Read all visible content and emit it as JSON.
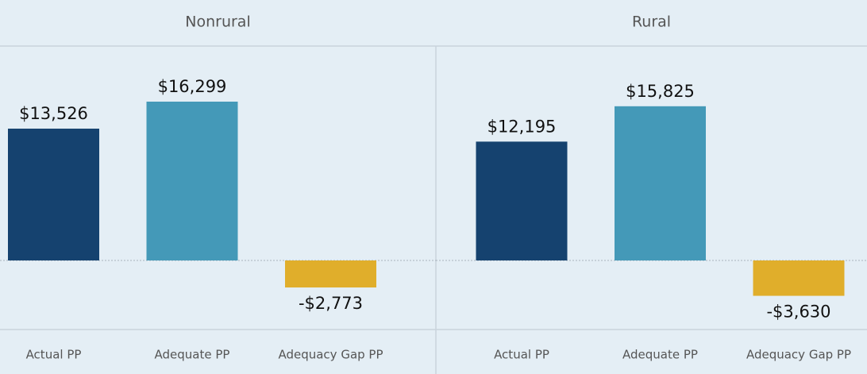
{
  "chart_data": [
    {
      "type": "bar",
      "title": "Nonrural",
      "categories": [
        "Actual PP",
        "Adequate PP",
        "Adequacy  Gap PP"
      ],
      "values": [
        13526,
        16299,
        -2773
      ],
      "value_labels": [
        "$13,526",
        "$16,299",
        "-$2,773"
      ],
      "colors": [
        "#15426f",
        "#4499b8",
        "#e0ae2b"
      ]
    },
    {
      "type": "bar",
      "title": "Rural",
      "categories": [
        "Actual PP",
        "Adequate PP",
        "Adequacy  Gap PP"
      ],
      "values": [
        12195,
        15825,
        -3630
      ],
      "value_labels": [
        "$12,195",
        "$15,825",
        "-$3,630"
      ],
      "colors": [
        "#15426f",
        "#4499b8",
        "#e0ae2b"
      ]
    }
  ]
}
